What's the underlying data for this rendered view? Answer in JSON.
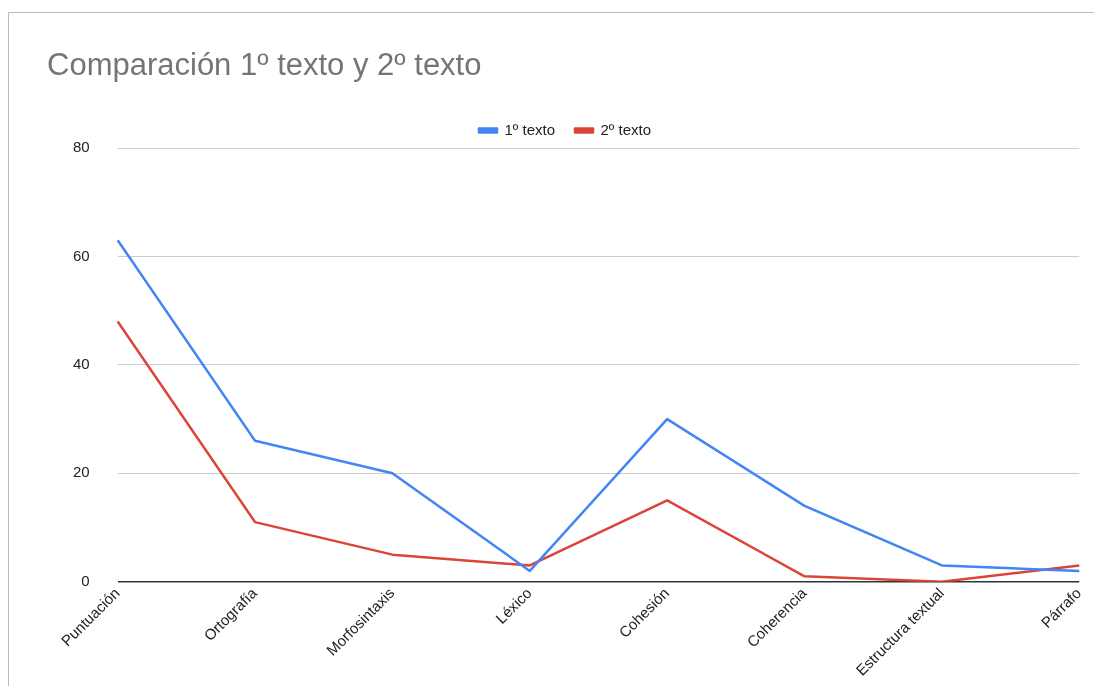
{
  "chart_data": {
    "type": "line",
    "title": "Comparación 1º texto y 2º texto",
    "categories": [
      "Puntuación",
      "Ortografía",
      "Morfosintaxis",
      "Léxico",
      "Cohesión",
      "Coherencia",
      "Estructura textual",
      "Párrafo"
    ],
    "series": [
      {
        "name": "1º texto",
        "color": "#4285f4",
        "values": [
          63,
          26,
          20,
          2,
          30,
          14,
          3,
          2
        ]
      },
      {
        "name": "2º texto",
        "color": "#db4437",
        "values": [
          48,
          11,
          5,
          3,
          15,
          1,
          0,
          3
        ]
      }
    ],
    "ylim": [
      0,
      80
    ],
    "yticks": [
      0,
      20,
      40,
      60,
      80
    ],
    "grid": "y",
    "legend": "top",
    "marker": "none",
    "line_style": "solid"
  }
}
